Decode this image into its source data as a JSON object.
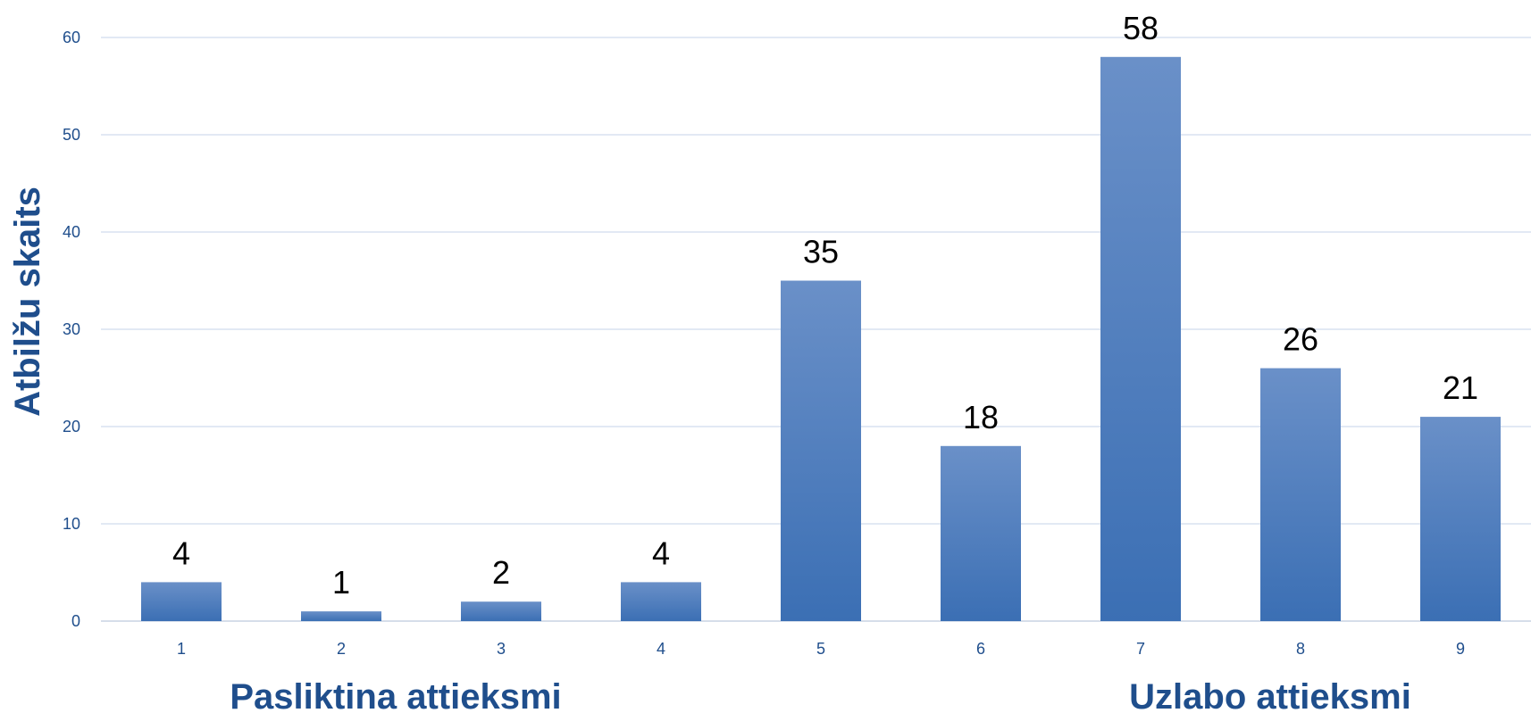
{
  "chart_data": {
    "type": "bar",
    "categories": [
      "1",
      "2",
      "3",
      "4",
      "5",
      "6",
      "7",
      "8",
      "9"
    ],
    "values": [
      4,
      1,
      2,
      4,
      35,
      18,
      58,
      26,
      21
    ],
    "title": "",
    "ylabel": "Atbilžu skaits",
    "ylim": [
      0,
      60
    ],
    "yticks": [
      0,
      10,
      20,
      30,
      40,
      50,
      60
    ],
    "grid": true,
    "bar_color": "#4a7ebf",
    "annotations": {
      "left": "Pasliktina attieksmi",
      "right": "Uzlabo attieksmi"
    }
  }
}
